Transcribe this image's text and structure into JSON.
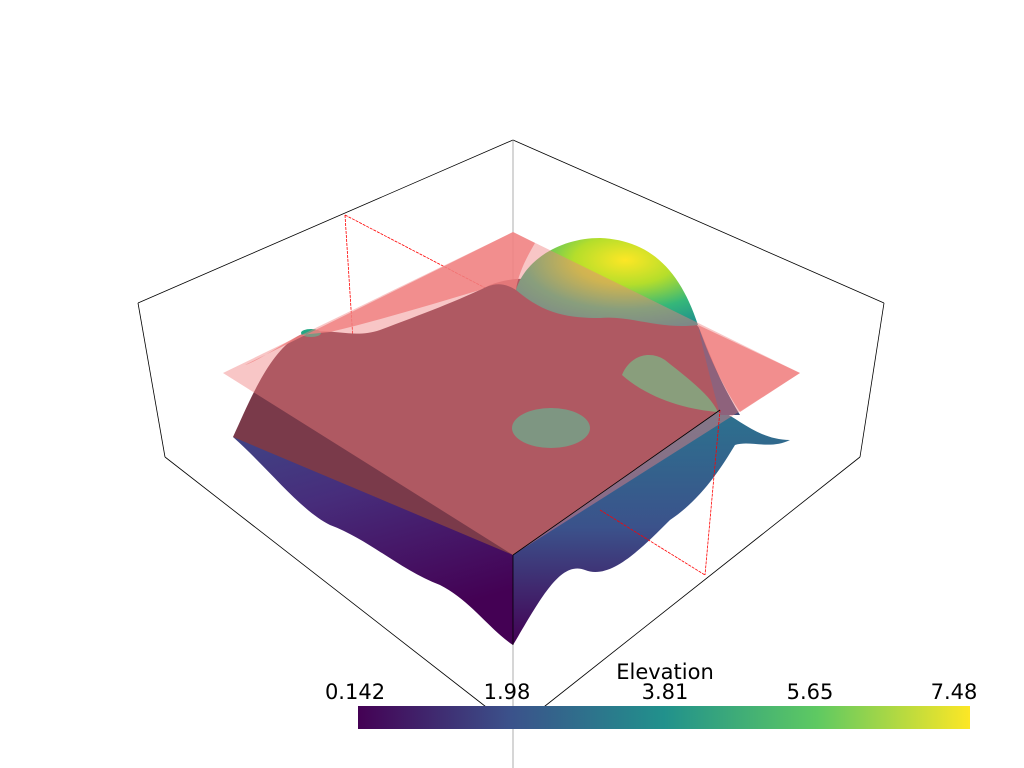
{
  "scalar_bar": {
    "title": "Elevation",
    "ticks": [
      "0.142",
      "1.98",
      "3.81",
      "5.65",
      "7.48"
    ],
    "range": [
      0.142,
      7.48
    ],
    "colormap": "viridis",
    "colors": [
      "#440154",
      "#3b528b",
      "#21918c",
      "#5ec962",
      "#fde725"
    ]
  },
  "scene": {
    "background": "#ffffff",
    "slice_plane_color": "#f08080",
    "slice_outline_color": "#ff0000",
    "bounding_box_color": "#000000"
  }
}
